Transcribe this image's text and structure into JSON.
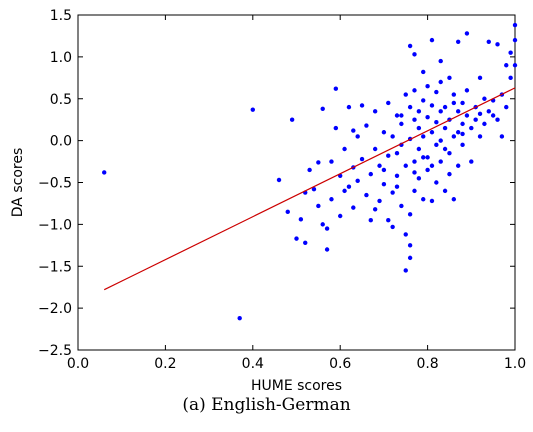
{
  "caption": "(a) English-German",
  "chart_data": {
    "type": "scatter",
    "xlabel": "HUME scores",
    "ylabel": "DA scores",
    "xlim": [
      0.0,
      1.0
    ],
    "ylim": [
      -2.5,
      1.5
    ],
    "xticks": [
      0.0,
      0.2,
      0.4,
      0.6,
      0.8,
      1.0
    ],
    "xtick_labels": [
      "0.0",
      "0.2",
      "0.4",
      "0.6",
      "0.8",
      "1.0"
    ],
    "yticks": [
      -2.5,
      -2.0,
      -1.5,
      -1.0,
      -0.5,
      0.0,
      0.5,
      1.0,
      1.5
    ],
    "ytick_labels": [
      "−2.5",
      "−2.0",
      "−1.5",
      "−1.0",
      "−0.5",
      "0.0",
      "0.5",
      "1.0",
      "1.5"
    ],
    "grid": false,
    "series": [
      {
        "type": "scatter",
        "color": "#0000ff",
        "points": [
          [
            0.06,
            -0.38
          ],
          [
            0.37,
            -2.12
          ],
          [
            0.4,
            0.37
          ],
          [
            0.46,
            -0.47
          ],
          [
            0.48,
            -0.85
          ],
          [
            0.49,
            0.25
          ],
          [
            0.5,
            -1.17
          ],
          [
            0.51,
            -0.94
          ],
          [
            0.52,
            -1.22
          ],
          [
            0.53,
            -0.35
          ],
          [
            0.54,
            -0.58
          ],
          [
            0.55,
            -0.26
          ],
          [
            0.56,
            0.38
          ],
          [
            0.56,
            -1.0
          ],
          [
            0.57,
            -1.3
          ],
          [
            0.57,
            -1.05
          ],
          [
            0.58,
            -0.7
          ],
          [
            0.58,
            -0.25
          ],
          [
            0.59,
            0.15
          ],
          [
            0.59,
            0.62
          ],
          [
            0.6,
            -0.42
          ],
          [
            0.6,
            -0.9
          ],
          [
            0.61,
            -0.6
          ],
          [
            0.61,
            -0.1
          ],
          [
            0.62,
            0.4
          ],
          [
            0.62,
            -0.55
          ],
          [
            0.63,
            -0.32
          ],
          [
            0.63,
            -0.8
          ],
          [
            0.64,
            0.05
          ],
          [
            0.64,
            -0.48
          ],
          [
            0.65,
            -0.22
          ],
          [
            0.65,
            0.42
          ],
          [
            0.66,
            -0.65
          ],
          [
            0.66,
            0.18
          ],
          [
            0.67,
            -0.4
          ],
          [
            0.67,
            -0.95
          ],
          [
            0.68,
            -0.1
          ],
          [
            0.68,
            0.35
          ],
          [
            0.69,
            -0.3
          ],
          [
            0.69,
            -0.72
          ],
          [
            0.7,
            0.1
          ],
          [
            0.7,
            -0.52
          ],
          [
            0.7,
            -0.35
          ],
          [
            0.71,
            0.45
          ],
          [
            0.71,
            -0.18
          ],
          [
            0.72,
            -0.62
          ],
          [
            0.72,
            0.05
          ],
          [
            0.72,
            -1.03
          ],
          [
            0.73,
            0.3
          ],
          [
            0.73,
            -0.15
          ],
          [
            0.73,
            -0.42
          ],
          [
            0.74,
            -0.78
          ],
          [
            0.74,
            0.2
          ],
          [
            0.74,
            -0.05
          ],
          [
            0.75,
            0.55
          ],
          [
            0.75,
            -0.3
          ],
          [
            0.75,
            -1.12
          ],
          [
            0.75,
            -1.55
          ],
          [
            0.76,
            1.13
          ],
          [
            0.76,
            0.4
          ],
          [
            0.76,
            -0.88
          ],
          [
            0.76,
            -1.25
          ],
          [
            0.76,
            -1.4
          ],
          [
            0.76,
            0.02
          ],
          [
            0.77,
            1.03
          ],
          [
            0.77,
            0.25
          ],
          [
            0.77,
            -0.25
          ],
          [
            0.77,
            -0.6
          ],
          [
            0.77,
            0.6
          ],
          [
            0.78,
            0.15
          ],
          [
            0.78,
            -0.1
          ],
          [
            0.78,
            -0.45
          ],
          [
            0.78,
            0.35
          ],
          [
            0.79,
            0.82
          ],
          [
            0.79,
            -0.7
          ],
          [
            0.79,
            0.05
          ],
          [
            0.79,
            0.48
          ],
          [
            0.8,
            -0.2
          ],
          [
            0.8,
            0.28
          ],
          [
            0.8,
            0.65
          ],
          [
            0.8,
            -0.35
          ],
          [
            0.81,
            0.1
          ],
          [
            0.81,
            0.42
          ],
          [
            0.81,
            -0.72
          ],
          [
            0.81,
            1.2
          ],
          [
            0.82,
            0.22
          ],
          [
            0.82,
            -0.05
          ],
          [
            0.82,
            0.58
          ],
          [
            0.82,
            -0.5
          ],
          [
            0.83,
            0.35
          ],
          [
            0.83,
            -0.25
          ],
          [
            0.83,
            0.95
          ],
          [
            0.83,
            0.0
          ],
          [
            0.84,
            0.4
          ],
          [
            0.84,
            0.15
          ],
          [
            0.84,
            -0.6
          ],
          [
            0.85,
            0.75
          ],
          [
            0.85,
            0.25
          ],
          [
            0.85,
            -0.15
          ],
          [
            0.85,
            -0.4
          ],
          [
            0.86,
            0.55
          ],
          [
            0.86,
            0.05
          ],
          [
            0.86,
            -0.7
          ],
          [
            0.87,
            0.35
          ],
          [
            0.87,
            0.1
          ],
          [
            0.87,
            1.18
          ],
          [
            0.87,
            -0.3
          ],
          [
            0.88,
            0.45
          ],
          [
            0.88,
            0.2
          ],
          [
            0.88,
            -0.05
          ],
          [
            0.89,
            1.28
          ],
          [
            0.89,
            0.3
          ],
          [
            0.89,
            0.6
          ],
          [
            0.9,
            0.15
          ],
          [
            0.9,
            -0.25
          ],
          [
            0.91,
            0.4
          ],
          [
            0.91,
            0.25
          ],
          [
            0.92,
            0.75
          ],
          [
            0.92,
            0.05
          ],
          [
            0.93,
            0.5
          ],
          [
            0.93,
            0.2
          ],
          [
            0.94,
            1.18
          ],
          [
            0.94,
            0.35
          ],
          [
            0.95,
            0.48
          ],
          [
            0.95,
            0.3
          ],
          [
            0.96,
            1.15
          ],
          [
            0.96,
            0.25
          ],
          [
            0.97,
            0.55
          ],
          [
            0.97,
            0.05
          ],
          [
            0.98,
            0.9
          ],
          [
            0.98,
            0.4
          ],
          [
            0.99,
            0.75
          ],
          [
            0.99,
            1.05
          ],
          [
            1.0,
            1.38
          ],
          [
            1.0,
            1.2
          ],
          [
            1.0,
            0.9
          ],
          [
            0.52,
            -0.62
          ],
          [
            0.55,
            -0.78
          ],
          [
            0.63,
            0.12
          ],
          [
            0.68,
            -0.82
          ],
          [
            0.71,
            -0.95
          ],
          [
            0.84,
            -0.1
          ],
          [
            0.73,
            -0.55
          ],
          [
            0.79,
            -0.2
          ],
          [
            0.74,
            0.3
          ],
          [
            0.88,
            0.08
          ],
          [
            0.92,
            0.32
          ],
          [
            0.83,
            0.7
          ],
          [
            0.77,
            -0.38
          ],
          [
            0.81,
            -0.3
          ],
          [
            0.86,
            0.45
          ]
        ]
      },
      {
        "type": "line",
        "color": "#cc0000",
        "points": [
          [
            0.06,
            -1.78
          ],
          [
            1.0,
            0.63
          ]
        ]
      }
    ]
  }
}
